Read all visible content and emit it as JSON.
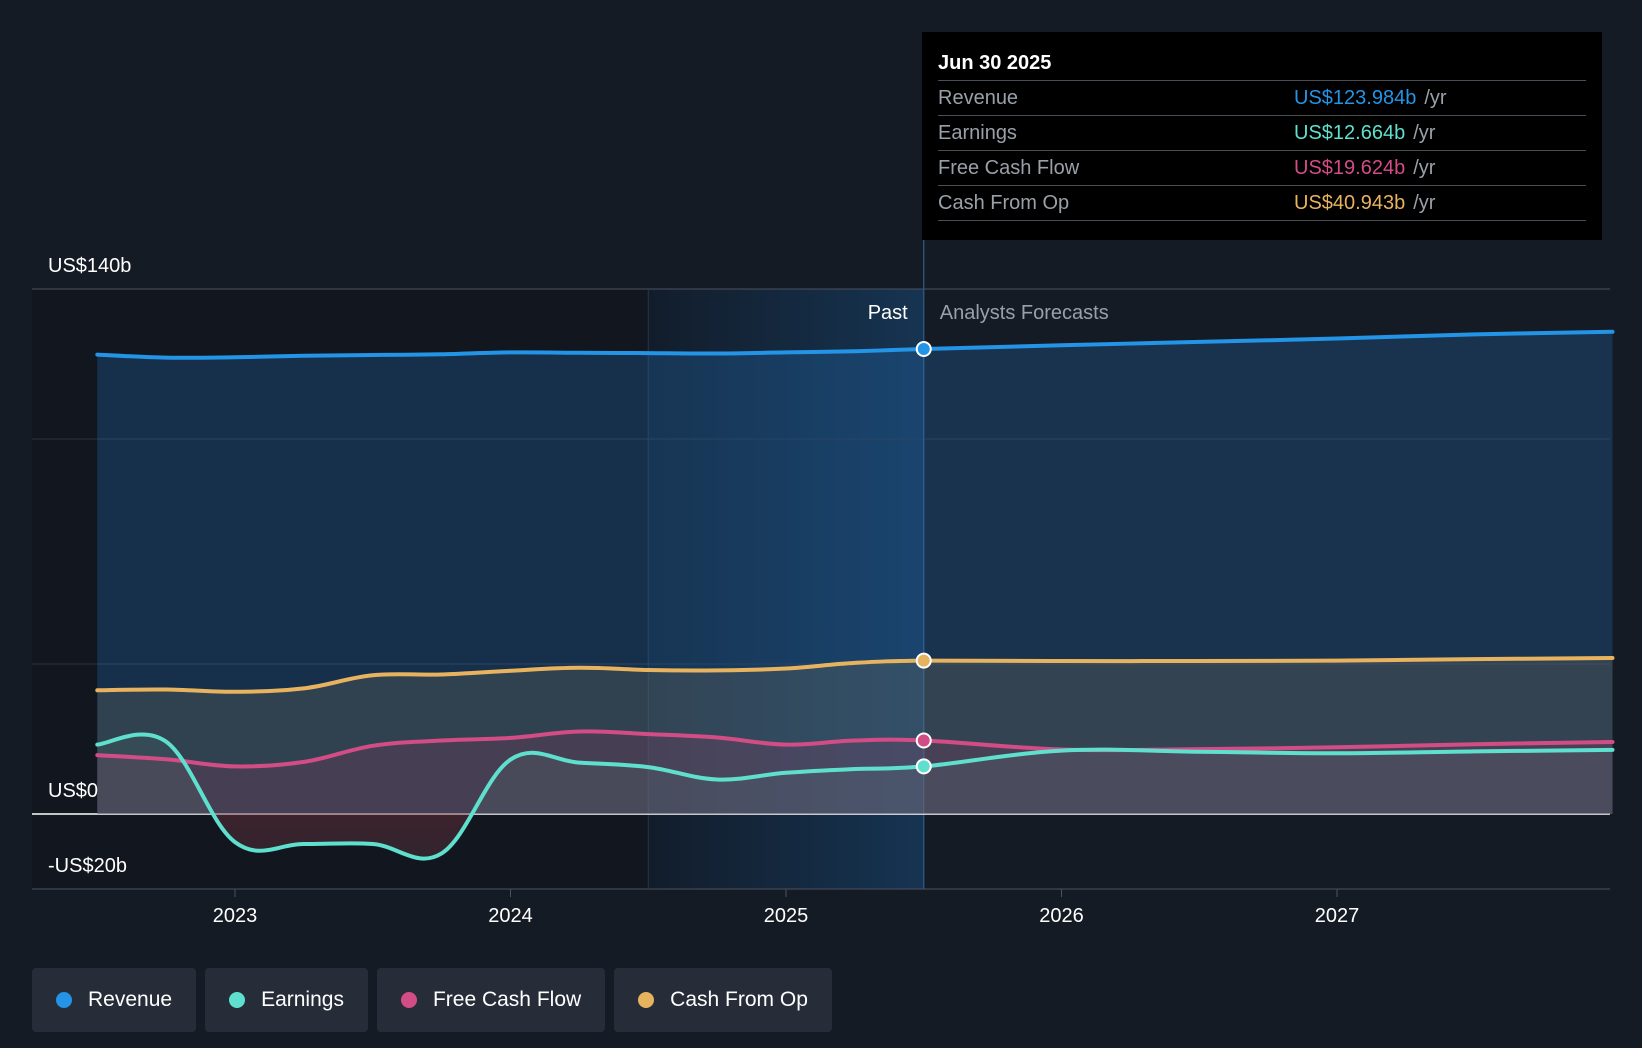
{
  "chart_data": {
    "type": "line",
    "title": "",
    "y_axis_labels": {
      "top": "US$140b",
      "zero": "US$0",
      "bottom": "-US$20b"
    },
    "ylim": [
      -20,
      140
    ],
    "x_ticks": [
      "2023",
      "2024",
      "2025",
      "2026",
      "2027"
    ],
    "x_tick_values": [
      2023.0,
      2024.0,
      2025.0,
      2026.0,
      2027.0
    ],
    "x_range": [
      2022.3,
      2028.0
    ],
    "past_start": 2022.5,
    "shade_start": 2024.5,
    "divider": 2025.5,
    "past_label": "Past",
    "forecast_label": "Analysts Forecasts",
    "series": [
      {
        "name": "Revenue",
        "color": "#2394e6",
        "points": [
          [
            2022.5,
            122.5
          ],
          [
            2022.75,
            121.7
          ],
          [
            2023.0,
            121.8
          ],
          [
            2023.25,
            122.2
          ],
          [
            2023.5,
            122.4
          ],
          [
            2023.75,
            122.6
          ],
          [
            2024.0,
            123.1
          ],
          [
            2024.25,
            123.0
          ],
          [
            2024.5,
            122.9
          ],
          [
            2024.75,
            122.8
          ],
          [
            2025.0,
            123.1
          ],
          [
            2025.25,
            123.4
          ],
          [
            2025.5,
            124.0
          ],
          [
            2026.0,
            125.0
          ],
          [
            2026.5,
            125.9
          ],
          [
            2027.0,
            126.8
          ],
          [
            2027.5,
            127.9
          ],
          [
            2028.0,
            128.6
          ]
        ]
      },
      {
        "name": "Cash From Op",
        "color": "#e8b35f",
        "points": [
          [
            2022.5,
            33.0
          ],
          [
            2022.75,
            33.2
          ],
          [
            2023.0,
            32.6
          ],
          [
            2023.25,
            33.5
          ],
          [
            2023.5,
            37.0
          ],
          [
            2023.75,
            37.2
          ],
          [
            2024.0,
            38.2
          ],
          [
            2024.25,
            39.0
          ],
          [
            2024.5,
            38.4
          ],
          [
            2024.75,
            38.3
          ],
          [
            2025.0,
            38.8
          ],
          [
            2025.25,
            40.3
          ],
          [
            2025.5,
            40.9
          ],
          [
            2026.0,
            40.8
          ],
          [
            2026.5,
            40.8
          ],
          [
            2027.0,
            40.9
          ],
          [
            2027.5,
            41.3
          ],
          [
            2028.0,
            41.6
          ]
        ]
      },
      {
        "name": "Free Cash Flow",
        "color": "#d24d86",
        "points": [
          [
            2022.5,
            15.7
          ],
          [
            2022.75,
            14.6
          ],
          [
            2023.0,
            12.7
          ],
          [
            2023.25,
            13.9
          ],
          [
            2023.5,
            18.2
          ],
          [
            2023.75,
            19.6
          ],
          [
            2024.0,
            20.3
          ],
          [
            2024.25,
            22.0
          ],
          [
            2024.5,
            21.3
          ],
          [
            2024.75,
            20.4
          ],
          [
            2025.0,
            18.5
          ],
          [
            2025.25,
            19.6
          ],
          [
            2025.5,
            19.6
          ],
          [
            2026.0,
            17.2
          ],
          [
            2026.5,
            17.3
          ],
          [
            2027.0,
            17.8
          ],
          [
            2027.5,
            18.6
          ],
          [
            2028.0,
            19.2
          ]
        ]
      },
      {
        "name": "Earnings",
        "color": "#5fe0ce",
        "points": [
          [
            2022.5,
            18.5
          ],
          [
            2022.75,
            19.3
          ],
          [
            2023.0,
            -7.5
          ],
          [
            2023.25,
            -8.0
          ],
          [
            2023.5,
            -8.0
          ],
          [
            2023.75,
            -10.5
          ],
          [
            2024.0,
            14.5
          ],
          [
            2024.25,
            13.7
          ],
          [
            2024.5,
            12.5
          ],
          [
            2024.75,
            9.2
          ],
          [
            2025.0,
            11.0
          ],
          [
            2025.25,
            12.0
          ],
          [
            2025.5,
            12.7
          ],
          [
            2026.0,
            16.9
          ],
          [
            2026.5,
            16.6
          ],
          [
            2027.0,
            16.2
          ],
          [
            2027.5,
            16.7
          ],
          [
            2028.0,
            17.1
          ]
        ]
      }
    ]
  },
  "tooltip": {
    "date": "Jun 30 2025",
    "rows": [
      {
        "name": "Revenue",
        "value": "US$123.984b",
        "unit": "/yr",
        "color": "#2394e6"
      },
      {
        "name": "Earnings",
        "value": "US$12.664b",
        "unit": "/yr",
        "color": "#5fe0ce"
      },
      {
        "name": "Free Cash Flow",
        "value": "US$19.624b",
        "unit": "/yr",
        "color": "#d24d86"
      },
      {
        "name": "Cash From Op",
        "value": "US$40.943b",
        "unit": "/yr",
        "color": "#e8b35f"
      }
    ]
  },
  "legend": [
    {
      "label": "Revenue",
      "color": "#2394e6"
    },
    {
      "label": "Earnings",
      "color": "#5fe0ce"
    },
    {
      "label": "Free Cash Flow",
      "color": "#d24d86"
    },
    {
      "label": "Cash From Op",
      "color": "#e8b35f"
    }
  ]
}
